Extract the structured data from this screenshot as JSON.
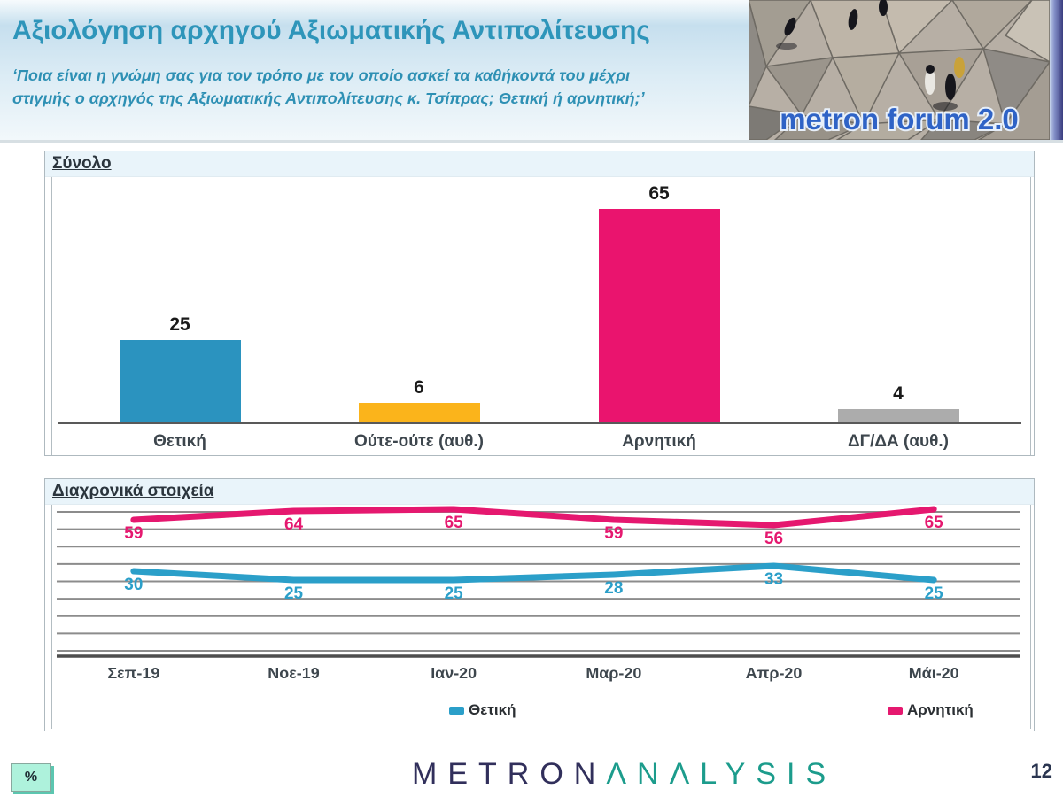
{
  "header": {
    "title": "Αξιολόγηση αρχηγού Αξιωματικής Αντιπολίτευσης",
    "subtitle_lines": [
      "‘Ποια είναι η γνώμη σας για τον τρόπο με τον οποίο ασκεί τα καθήκοντά του μέχρι",
      "στιγμής ο αρχηγός της Αξιωματικής Αντιπολίτευσης κ. Τσίπρας; Θετική ή αρνητική;’"
    ],
    "logo_text": "metron forum 2.0"
  },
  "panels": {
    "total_label": "Σύνολο",
    "trend_label": "Διαχρονικά στοιχεία"
  },
  "chart_data": [
    {
      "type": "bar",
      "title": "Σύνολο",
      "categories": [
        "Θετική",
        "Ούτε-ούτε (αυθ.)",
        "Αρνητική",
        "ΔΓ/ΔΑ (αυθ.)"
      ],
      "values": [
        25,
        6,
        65,
        4
      ],
      "colors": [
        "#2b93bf",
        "#fbb41b",
        "#ea146e",
        "#acacac"
      ],
      "value_labels_shown": true,
      "y_axis_visible": false,
      "grid": false
    },
    {
      "type": "line",
      "title": "Διαχρονικά στοιχεία",
      "categories": [
        "Σεπ-19",
        "Νοε-19",
        "Ιαν-20",
        "Μαρ-20",
        "Απρ-20",
        "Μάι-20"
      ],
      "series": [
        {
          "name": "Θετική",
          "color": "#2b9fc9",
          "values": [
            30,
            25,
            25,
            28,
            33,
            25
          ]
        },
        {
          "name": "Αρνητική",
          "color": "#e5186f",
          "values": [
            59,
            64,
            65,
            59,
            56,
            65
          ]
        }
      ],
      "value_labels_shown": true,
      "y_axis_visible": false,
      "grid": true,
      "gridline_color": "#8c8c8c",
      "legend_position": "bottom"
    }
  ],
  "footer": {
    "percent_badge": "%",
    "brand_metron": "METRON",
    "brand_analysis": "ΛNΛLYSIS",
    "page_number": "12"
  }
}
